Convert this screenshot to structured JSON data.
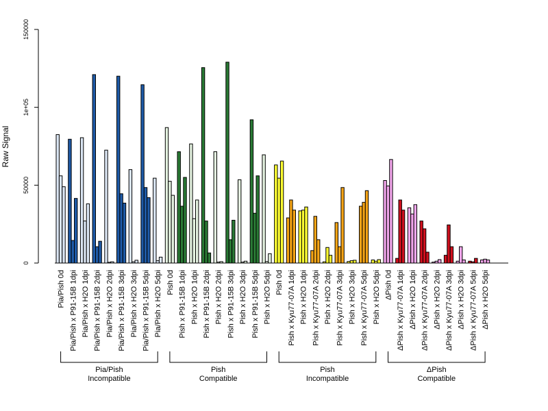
{
  "chart_data": {
    "type": "bar",
    "ylabel": "Raw Signal",
    "ylim": [
      0,
      150000
    ],
    "yticks": [
      0,
      50000,
      100000,
      150000
    ],
    "ytick_labels": [
      "0",
      "50000",
      "1e+05",
      "150000"
    ],
    "categories": [
      "Pia/Pish 0d",
      "Pia/Pish x P91-15B 1dpi",
      "Pia/Pish x H2O 1dpi",
      "Pia/Pish x P91-15B 2dpi",
      "Pia/Pish x H2O 2dpi",
      "Pia/Pish x P91-15B 3dpi",
      "Pia/Pish x H2O 3dpi",
      "Pia/Pish x P91-15B 5dpi",
      "Pia/Pish x H2O 5dpi",
      "Pish 0d",
      "Pish x P91-15B 1dpi",
      "Pish x H2O 1dpi",
      "Pish x P91-15B 2dpi",
      "Pish x H2O 2dpi",
      "Pish x P91-15B 3dpi",
      "Pish x H2O 3dpi",
      "Pish x P91-15B 5dpi",
      "Pish x H2O 5dpi",
      "Pish 0d",
      "Pish x Kyu77-07A 1dpi",
      "Pish x H2O 1dpi",
      "Pish x Kyu77-07A 2dpi",
      "Pish x H2O 2dpi",
      "Pish x Kyu77-07A 3dpi",
      "Pish x H2O 3dpi",
      "Pish x Kyu77-07A 5dpi",
      "Pish x H2O 5dpi",
      "ΔPish 0d",
      "ΔPish x Kyu77-07A 1dpi",
      "ΔPish x H2O 1dpi",
      "ΔPish x Kyu77-07A 2dpi",
      "ΔPish x H2O 2dpi",
      "ΔPish x Kyu77-07A 3dpi",
      "ΔPish x H2O 3dpi",
      "ΔPish x Kyu77-07A 5dpi",
      "ΔPish x H2O 5dpi"
    ],
    "replicates": [
      [
        82500,
        56000,
        49000
      ],
      [
        79500,
        14500,
        41500
      ],
      [
        80500,
        27000,
        38000
      ],
      [
        121000,
        10500,
        14000
      ],
      [
        72500,
        500,
        800
      ],
      [
        120000,
        44500,
        38500
      ],
      [
        60000,
        800,
        1800
      ],
      [
        114500,
        48500,
        42000
      ],
      [
        54500,
        1500,
        3800
      ],
      [
        87000,
        52500,
        43500
      ],
      [
        71500,
        36500,
        55000
      ],
      [
        76500,
        28500,
        40500
      ],
      [
        125500,
        27000,
        6500
      ],
      [
        71500,
        600,
        900
      ],
      [
        129000,
        15000,
        27500
      ],
      [
        53500,
        600,
        1200
      ],
      [
        92000,
        32000,
        56000
      ],
      [
        69500,
        1000,
        6000
      ],
      [
        63000,
        54500,
        65500
      ],
      [
        29000,
        40500,
        34000
      ],
      [
        33500,
        34000,
        36000
      ],
      [
        8000,
        30000,
        15000
      ],
      [
        800,
        10000,
        5000
      ],
      [
        26000,
        10500,
        48500
      ],
      [
        1000,
        1500,
        1800
      ],
      [
        36500,
        39000,
        46500
      ],
      [
        2000,
        1200,
        2200
      ],
      [
        53000,
        49500,
        66500
      ],
      [
        3000,
        40500,
        34000
      ],
      [
        35500,
        31500,
        37500
      ],
      [
        27000,
        22000,
        7000
      ],
      [
        600,
        1200,
        2200
      ],
      [
        5000,
        24500,
        10500
      ],
      [
        1200,
        10500,
        2000
      ],
      [
        1200,
        800,
        3000
      ],
      [
        2000,
        2500,
        2000
      ]
    ],
    "bar_colors": [
      "#dbe6f4",
      "#1f5ba8",
      "#dbe6f4",
      "#1f5ba8",
      "#dbe6f4",
      "#1f5ba8",
      "#dbe6f4",
      "#1f5ba8",
      "#dbe6f4",
      "#e4f2e0",
      "#2a7a35",
      "#e4f2e0",
      "#2a7a35",
      "#e4f2e0",
      "#2a7a35",
      "#e4f2e0",
      "#2a7a35",
      "#e4f2e0",
      "#ffff33",
      "#f5a416",
      "#ffff33",
      "#f5a416",
      "#ffff33",
      "#f5a416",
      "#ffff33",
      "#f5a416",
      "#ffff33",
      "#f2a6ec",
      "#d1101e",
      "#f2a6ec",
      "#d1101e",
      "#f2a6ec",
      "#d1101e",
      "#f2a6ec",
      "#d1101e",
      "#f2a6ec"
    ],
    "groups": [
      {
        "line1": "Pia/Pish",
        "line2": "Incompatible",
        "start": 0,
        "end": 8
      },
      {
        "line1": "Pish",
        "line2": "Compatible",
        "start": 9,
        "end": 17
      },
      {
        "line1": "Pish",
        "line2": "Incompatible",
        "start": 18,
        "end": 26
      },
      {
        "line1": "ΔPish",
        "line2": "Compatible",
        "start": 27,
        "end": 35
      }
    ],
    "grid": false,
    "legend": "none"
  }
}
